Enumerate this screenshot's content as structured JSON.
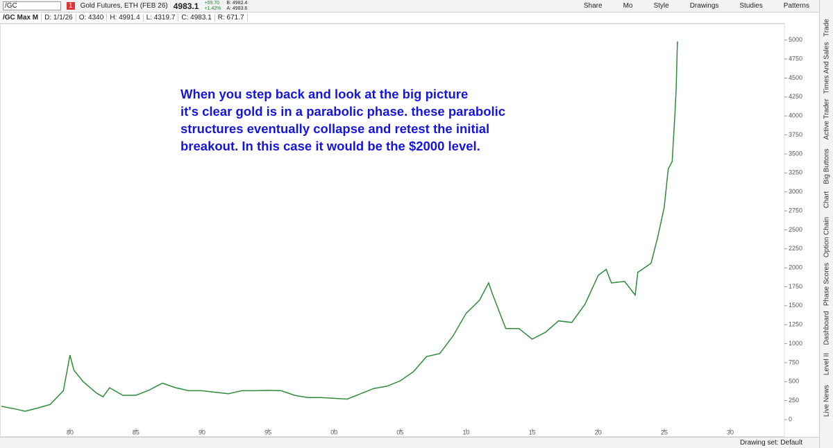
{
  "toolbar": {
    "symbol": "/GC",
    "description": "Gold Futures, ETH (FEB 26)",
    "last": "4983.1",
    "change": "+69.70",
    "change_pct": "+1.42%",
    "bid": "B: 4982.4",
    "ask": "A: 4983.6",
    "buttons": [
      "Share",
      "Mo",
      "Style",
      "Drawings",
      "Studies",
      "Patterns"
    ]
  },
  "info_bar": [
    "/GC Max M",
    "D: 1/1/26",
    "O: 4340",
    "H: 4991.4",
    "L: 4319.7",
    "C: 4983.1",
    "R: 671.7"
  ],
  "side_tabs": [
    "Trade",
    "Times And Sales",
    "Active Trader",
    "Big Buttons",
    "Chart",
    "Option Chain",
    "Phase Scores",
    "Dashboard",
    "Level II",
    "Live News"
  ],
  "footer": "Drawing set: Default",
  "chart_data": {
    "type": "line",
    "annotation": [
      "When you step back and look at the big picture",
      "it's clear gold is in a parabolic phase. these parabolic",
      "structures eventually collapse and retest the initial",
      "breakout. In this case it would be the $2000 level."
    ],
    "x": [
      1974.8,
      1976,
      1976.6,
      1977.5,
      1978.5,
      1979.5,
      1980,
      1980.3,
      1981,
      1982,
      1982.5,
      1983,
      1984,
      1985,
      1986,
      1987,
      1988,
      1989,
      1990,
      1991,
      1992,
      1993,
      1994,
      1995,
      1996,
      1997,
      1998,
      1999,
      2000,
      2001,
      2002,
      2003,
      2004,
      2005,
      2006,
      2007,
      2008,
      2009,
      2010,
      2011,
      2011.7,
      2012,
      2013,
      2014,
      2015,
      2016,
      2017,
      2018,
      2019,
      2020,
      2020.6,
      2021,
      2022,
      2022.8,
      2023,
      2024,
      2024.5,
      2025,
      2025.3,
      2025.6,
      2025.8,
      2025.9,
      2026
    ],
    "values": [
      175,
      135,
      110,
      150,
      200,
      380,
      850,
      650,
      500,
      350,
      300,
      420,
      320,
      320,
      390,
      480,
      420,
      380,
      380,
      360,
      340,
      380,
      380,
      385,
      380,
      320,
      290,
      290,
      280,
      270,
      340,
      410,
      440,
      510,
      630,
      830,
      870,
      1100,
      1400,
      1570,
      1800,
      1650,
      1200,
      1200,
      1060,
      1150,
      1300,
      1280,
      1520,
      1900,
      1980,
      1800,
      1820,
      1640,
      1940,
      2060,
      2400,
      2800,
      3300,
      3400,
      4000,
      4340,
      4983
    ],
    "color": "#2e8b3a",
    "xlim": [
      1974.7,
      2034.1
    ],
    "xticks": [
      {
        "value": 1980,
        "label": "80"
      },
      {
        "value": 1985,
        "label": "85"
      },
      {
        "value": 1990,
        "label": "90"
      },
      {
        "value": 1995,
        "label": "95"
      },
      {
        "value": 2000,
        "label": "00"
      },
      {
        "value": 2005,
        "label": "05"
      },
      {
        "value": 2010,
        "label": "10"
      },
      {
        "value": 2015,
        "label": "15"
      },
      {
        "value": 2020,
        "label": "20"
      },
      {
        "value": 2025,
        "label": "25"
      },
      {
        "value": 2030,
        "label": "30"
      }
    ],
    "ylim": [
      -228,
      5217
    ],
    "yticks": [
      0,
      250,
      500,
      750,
      1000,
      1250,
      1500,
      1750,
      2000,
      2250,
      2500,
      2750,
      3000,
      3250,
      3500,
      3750,
      4000,
      4250,
      4500,
      4750,
      5000
    ]
  }
}
